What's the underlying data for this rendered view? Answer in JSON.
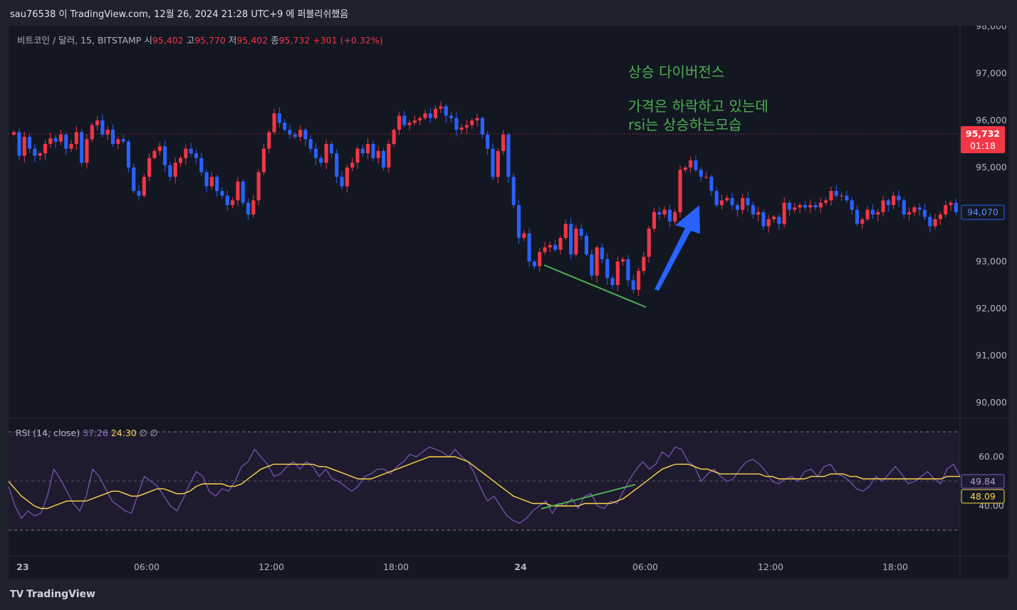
{
  "header": {
    "publisher_line": "sau76538 이 TradingView.com, 12월 26, 2024 21:28 UTC+9 에 퍼블리쉬했음"
  },
  "legend": {
    "symbol": "비트코인 / 달러, 15, BITSTAMP",
    "open_label": "시",
    "open_value": "95,402",
    "high_label": "고",
    "high_value": "95,770",
    "low_label": "저",
    "low_value": "95,402",
    "close_label": "종",
    "close_value": "95,732",
    "change": "+301 (+0.32%)"
  },
  "annotation": {
    "title": "상승 다이버전스",
    "line1": "가격은 하락하고 있는데",
    "line2": "rsi는 상승하는모습"
  },
  "rsi_legend": {
    "name": "RSI (14, close)",
    "rsi_value": "37.26",
    "ma_value": "24.30",
    "extra1": "∅",
    "extra2": "∅"
  },
  "footer": {
    "brand": "TradingView"
  },
  "colors": {
    "up": "#f23645",
    "down": "#2962ff",
    "background": "#131722",
    "rsi_line": "#7e57c2",
    "rsi_ma": "#ffd54f",
    "annotation": "#4caf50",
    "arrow": "#2962ff"
  },
  "price_badges": {
    "current_price": "95,732",
    "countdown": "01:18",
    "crosshair_price": "94,070",
    "rsi_badge": "49.84",
    "rsi_ma_badge": "48.09"
  },
  "chart_data": {
    "type": "candlestick",
    "price_axis": {
      "ticks": [
        "98,000",
        "97,000",
        "96,000",
        "95,000",
        "93,000",
        "92,000",
        "91,000",
        "90,000"
      ],
      "ylim": [
        89700,
        98100
      ]
    },
    "rsi_axis": {
      "ticks": [
        "60.00",
        "40.00"
      ],
      "upper_band": 70,
      "lower_band": 30
    },
    "time_axis": {
      "ticks": [
        "23",
        "06:00",
        "12:00",
        "18:00",
        "24",
        "06:00",
        "12:00",
        "18:00"
      ]
    },
    "close": [
      95750,
      95250,
      95650,
      95400,
      95250,
      95300,
      95500,
      95620,
      95550,
      95700,
      95400,
      95500,
      95750,
      95100,
      95600,
      95900,
      96000,
      95700,
      95800,
      95500,
      95600,
      95550,
      95000,
      94500,
      94400,
      94800,
      95200,
      95350,
      95450,
      95050,
      94800,
      95100,
      95200,
      95400,
      95300,
      95200,
      94900,
      94600,
      94800,
      94500,
      94400,
      94200,
      94300,
      94700,
      94250,
      94000,
      94300,
      94900,
      95400,
      95750,
      96150,
      95950,
      95800,
      95700,
      95650,
      95800,
      95600,
      95400,
      95200,
      95100,
      95500,
      95300,
      94800,
      94600,
      95000,
      95100,
      95400,
      95300,
      95500,
      95200,
      95350,
      95000,
      95500,
      95800,
      96100,
      95900,
      95950,
      96000,
      96050,
      96150,
      96050,
      96250,
      96300,
      96100,
      96050,
      95800,
      95850,
      95900,
      96000,
      96050,
      95700,
      95400,
      94800,
      95350,
      95700,
      94800,
      94200,
      93500,
      93600,
      93000,
      92900,
      93200,
      93300,
      93350,
      93250,
      93500,
      93800,
      93150,
      93700,
      93550,
      93150,
      92700,
      93300,
      93050,
      92650,
      92500,
      93000,
      93050,
      92600,
      92400,
      92800,
      93100,
      93700,
      94050,
      94000,
      94100,
      93850,
      94050,
      94950,
      95000,
      95150,
      94950,
      94800,
      94800,
      94500,
      94200,
      94300,
      94350,
      94200,
      94100,
      94350,
      94200,
      94000,
      94050,
      93750,
      93900,
      93950,
      93800,
      94250,
      94100,
      94150,
      94200,
      94150,
      94200,
      94150,
      94250,
      94300,
      94500,
      94400,
      94400,
      94300,
      94100,
      93800,
      93900,
      94100,
      94000,
      94050,
      94300,
      94200,
      94400,
      94300,
      94000,
      94050,
      94150,
      94100,
      93950,
      93750,
      93900,
      94000,
      94200,
      94250,
      94050
    ],
    "rsi": [
      48,
      40,
      35,
      38,
      36,
      37,
      44,
      55,
      51,
      46,
      41,
      38,
      44,
      55,
      52,
      47,
      42,
      40,
      38,
      37,
      45,
      52,
      50,
      48,
      44,
      40,
      38,
      43,
      49,
      54,
      52,
      46,
      44,
      47,
      46,
      50,
      56,
      58,
      63,
      60,
      57,
      52,
      53,
      56,
      58,
      55,
      58,
      56,
      52,
      55,
      51,
      50,
      48,
      46,
      48,
      52,
      53,
      55,
      55,
      53,
      56,
      58,
      61,
      60,
      62,
      64,
      63,
      62,
      60,
      63,
      60,
      58,
      53,
      47,
      42,
      44,
      40,
      36,
      34,
      33,
      35,
      38,
      40,
      42,
      37,
      41,
      40,
      43,
      39,
      44,
      45,
      40,
      39,
      42,
      41,
      46,
      51,
      55,
      58,
      55,
      57,
      62,
      60,
      64,
      63,
      58,
      56,
      50,
      53,
      55,
      52,
      50,
      51,
      55,
      58,
      59,
      57,
      54,
      50,
      49,
      51,
      52,
      50,
      54,
      55,
      52,
      56,
      57,
      53,
      52,
      50,
      47,
      46,
      48,
      52,
      50,
      53,
      56,
      53,
      49,
      50,
      52,
      54,
      51,
      49,
      55,
      57,
      52
    ],
    "rsi_ma": [
      50,
      47,
      44,
      42,
      40,
      39,
      39,
      40,
      41,
      42,
      42,
      42,
      42,
      43,
      44,
      45,
      46,
      46,
      45,
      44,
      44,
      45,
      46,
      47,
      47,
      46,
      45,
      45,
      46,
      48,
      49,
      49,
      49,
      49,
      48,
      48,
      49,
      51,
      53,
      55,
      56,
      57,
      57,
      57,
      57,
      57,
      57,
      57,
      56,
      56,
      55,
      54,
      53,
      52,
      51,
      51,
      51,
      52,
      53,
      54,
      55,
      56,
      57,
      58,
      59,
      60,
      60,
      60,
      60,
      60,
      59,
      58,
      56,
      54,
      52,
      50,
      48,
      46,
      44,
      43,
      42,
      41,
      41,
      41,
      40,
      40,
      40,
      40,
      40,
      41,
      41,
      41,
      41,
      41,
      42,
      43,
      45,
      47,
      49,
      51,
      53,
      55,
      56,
      57,
      57,
      57,
      56,
      55,
      55,
      54,
      53,
      53,
      53,
      53,
      53,
      53,
      53,
      52,
      52,
      51,
      51,
      51,
      51,
      51,
      52,
      52,
      52,
      53,
      53,
      53,
      52,
      52,
      51,
      51,
      51,
      51,
      51,
      51,
      51,
      51,
      51,
      51,
      51,
      51,
      51,
      52,
      52,
      52
    ]
  }
}
